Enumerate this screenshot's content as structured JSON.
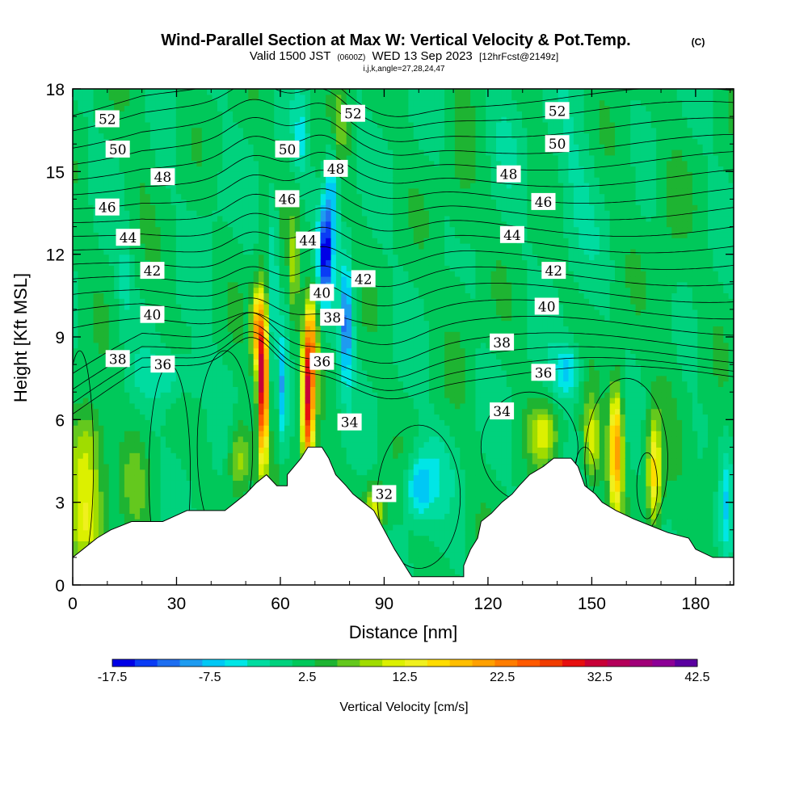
{
  "header": {
    "title_main": "Wind-Parallel Section at Max W: Vertical Velocity & Pot.Temp.",
    "title_unit": "(C)",
    "valid_a": "Valid 1500 JST",
    "valid_b": "(0600Z)",
    "valid_c": "WED 13 Sep 2023",
    "valid_d": "[12hrFcst@2149z]",
    "indices": "i,j,k,angle=27,28,24,47"
  },
  "chart_data": {
    "type": "heatmap",
    "xlabel": "Distance [nm]",
    "ylabel": "Height [Kft MSL]",
    "xlim": [
      0,
      191
    ],
    "ylim": [
      0,
      18
    ],
    "x_ticks": [
      "0",
      "30",
      "60",
      "90",
      "120",
      "150",
      "180"
    ],
    "y_ticks": [
      "0",
      "3",
      "6",
      "9",
      "12",
      "15",
      "18"
    ],
    "colorbar": {
      "label": "Vertical Velocity [cm/s]",
      "tick_labels": [
        "-17.5",
        "-7.5",
        "2.5",
        "12.5",
        "22.5",
        "32.5",
        "42.5"
      ],
      "colors": [
        "#0000e6",
        "#0a3cf5",
        "#1e6ef0",
        "#1e9bf0",
        "#00c8f5",
        "#00e6e6",
        "#00dca0",
        "#00d27d",
        "#00c85a",
        "#1eb432",
        "#64c81e",
        "#a0dc00",
        "#dcf000",
        "#f0f01e",
        "#ffdc00",
        "#ffbe00",
        "#ffa000",
        "#ff7d00",
        "#ff5a00",
        "#f03c00",
        "#e60f0f",
        "#c80037",
        "#b4005a",
        "#a00078",
        "#8c0096",
        "#5a00a0"
      ]
    },
    "terrain_profile": [
      [
        0,
        1
      ],
      [
        3,
        1.3
      ],
      [
        7,
        1.7
      ],
      [
        11,
        2
      ],
      [
        17,
        2.3
      ],
      [
        26,
        2.3
      ],
      [
        33,
        2.7
      ],
      [
        44,
        2.7
      ],
      [
        47,
        3
      ],
      [
        50,
        3.3
      ],
      [
        53,
        3.7
      ],
      [
        56,
        4
      ],
      [
        59,
        3.6
      ],
      [
        62,
        3.6
      ],
      [
        62,
        4
      ],
      [
        64,
        4.3
      ],
      [
        66,
        4.6
      ],
      [
        68,
        5
      ],
      [
        72,
        5
      ],
      [
        74,
        4.6
      ],
      [
        76,
        4
      ],
      [
        79,
        3.6
      ],
      [
        81,
        3.3
      ],
      [
        84,
        3
      ],
      [
        87,
        2.7
      ],
      [
        90,
        2
      ],
      [
        93,
        1.3
      ],
      [
        96,
        0.7
      ],
      [
        98,
        0.3
      ],
      [
        113,
        0.3
      ],
      [
        113,
        0.7
      ],
      [
        115,
        1.3
      ],
      [
        117,
        1.7
      ],
      [
        118,
        2.3
      ],
      [
        121,
        2.6
      ],
      [
        124,
        3
      ],
      [
        127,
        3.3
      ],
      [
        129,
        3.6
      ],
      [
        132,
        4
      ],
      [
        136,
        4.3
      ],
      [
        139,
        4.6
      ],
      [
        144,
        4.6
      ],
      [
        146,
        4.3
      ],
      [
        148,
        3.6
      ],
      [
        151,
        3.3
      ],
      [
        153,
        3
      ],
      [
        157,
        2.7
      ],
      [
        162,
        2.4
      ],
      [
        168,
        2.1
      ],
      [
        172,
        1.9
      ],
      [
        178,
        1.7
      ],
      [
        180,
        1.3
      ],
      [
        185,
        1
      ],
      [
        191,
        1
      ]
    ],
    "theta_labels": [
      {
        "text": "52",
        "x": 10,
        "y": 16.9
      },
      {
        "text": "50",
        "x": 13,
        "y": 15.8
      },
      {
        "text": "48",
        "x": 26,
        "y": 14.8
      },
      {
        "text": "46",
        "x": 10,
        "y": 13.7
      },
      {
        "text": "44",
        "x": 16,
        "y": 12.6
      },
      {
        "text": "42",
        "x": 23,
        "y": 11.4
      },
      {
        "text": "40",
        "x": 23,
        "y": 9.8
      },
      {
        "text": "38",
        "x": 13,
        "y": 8.2
      },
      {
        "text": "36",
        "x": 26,
        "y": 8.0
      },
      {
        "text": "50",
        "x": 62,
        "y": 15.8
      },
      {
        "text": "46",
        "x": 62,
        "y": 14.0
      },
      {
        "text": "44",
        "x": 68,
        "y": 12.5
      },
      {
        "text": "40",
        "x": 72,
        "y": 10.6
      },
      {
        "text": "38",
        "x": 75,
        "y": 9.7
      },
      {
        "text": "36",
        "x": 72,
        "y": 8.1
      },
      {
        "text": "52",
        "x": 81,
        "y": 17.1
      },
      {
        "text": "48",
        "x": 76,
        "y": 15.1
      },
      {
        "text": "42",
        "x": 84,
        "y": 11.1
      },
      {
        "text": "34",
        "x": 80,
        "y": 5.9
      },
      {
        "text": "32",
        "x": 90,
        "y": 3.3
      },
      {
        "text": "52",
        "x": 140,
        "y": 17.2
      },
      {
        "text": "50",
        "x": 140,
        "y": 16.0
      },
      {
        "text": "48",
        "x": 126,
        "y": 14.9
      },
      {
        "text": "46",
        "x": 136,
        "y": 13.9
      },
      {
        "text": "44",
        "x": 127,
        "y": 12.7
      },
      {
        "text": "42",
        "x": 139,
        "y": 11.4
      },
      {
        "text": "40",
        "x": 137,
        "y": 10.1
      },
      {
        "text": "38",
        "x": 124,
        "y": 8.8
      },
      {
        "text": "36",
        "x": 136,
        "y": 7.7
      },
      {
        "text": "34",
        "x": 124,
        "y": 6.3
      }
    ]
  }
}
